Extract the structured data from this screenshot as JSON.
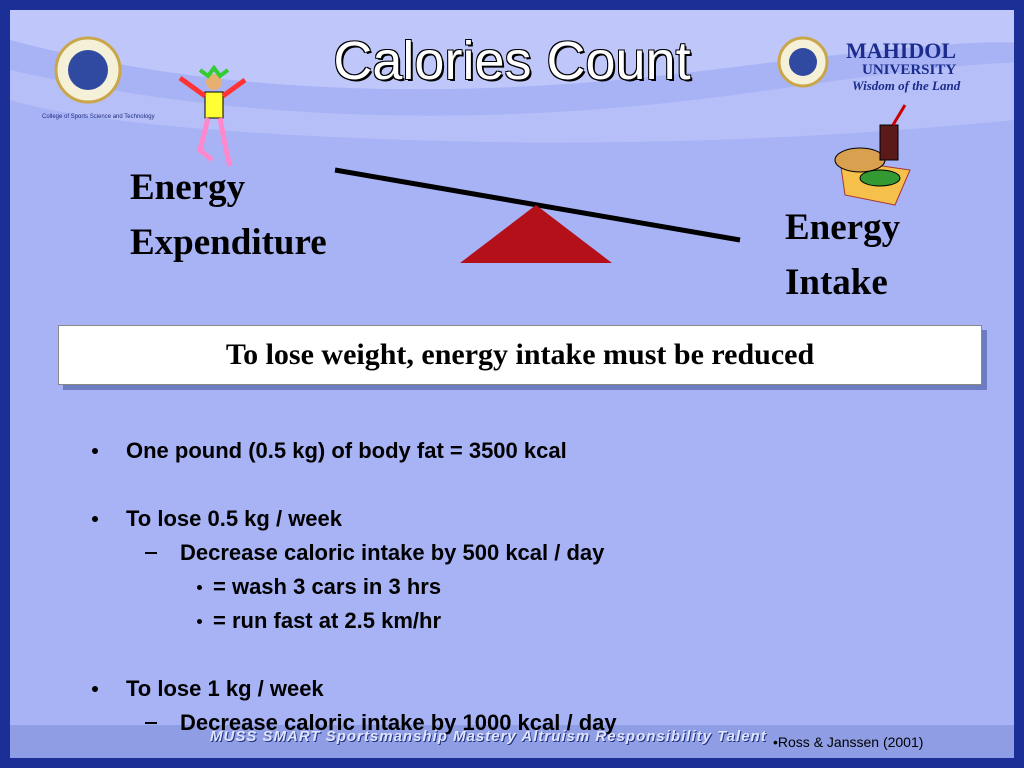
{
  "header": {
    "title": "Calories Count",
    "college": "College of Sports Science and Technology",
    "logo": {
      "name": "MAHIDOL",
      "subname": "UNIVERSITY",
      "motto": "Wisdom of the Land"
    }
  },
  "balance": {
    "left": [
      "Energy",
      "Expenditure"
    ],
    "right": [
      "Energy",
      "Intake"
    ]
  },
  "callout": "To lose weight, energy intake must be reduced",
  "bullets": [
    {
      "text": "One pound (0.5 kg) of body fat = 3500 kcal"
    },
    {
      "text": "To lose 0.5 kg / week",
      "children": [
        {
          "text": "Decrease caloric intake by 500 kcal / day",
          "children": [
            {
              "text": "= wash 3 cars in 3 hrs"
            },
            {
              "text": "= run fast at 2.5 km/hr"
            }
          ]
        }
      ]
    },
    {
      "text": "To lose 1 kg / week",
      "children": [
        {
          "text": "Decrease caloric intake by 1000 kcal / day"
        }
      ]
    }
  ],
  "footer": {
    "tagline": "MUSS SMART   Sportsmanship  Mastery   Altruism   Responsibility   Talent",
    "citation": "•Ross & Janssen (2001)"
  }
}
